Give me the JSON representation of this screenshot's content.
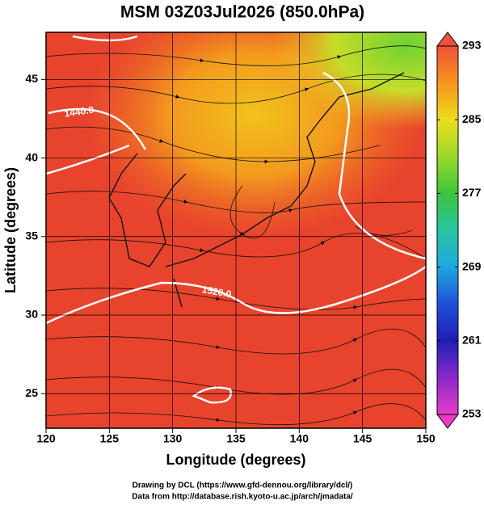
{
  "title": "MSM 03Z03Jul2026 (850.0hPa)",
  "x_axis": {
    "label": "Longitude (degrees)",
    "xlim": [
      120,
      150
    ],
    "ticks": [
      120,
      125,
      130,
      135,
      140,
      145,
      150
    ]
  },
  "y_axis": {
    "label": "Latitude  (degrees)",
    "ylim": [
      22.8,
      48
    ],
    "ticks": [
      25,
      30,
      35,
      40,
      45
    ]
  },
  "colorbar": {
    "lim": [
      253,
      293
    ],
    "ticks": [
      293,
      285,
      277,
      269,
      261,
      253
    ]
  },
  "contour_labels": [
    "1440.0",
    "1520.0"
  ],
  "credits": [
    "Drawing by DCL (https://www.gfd-dennou.org/library/dcl/)",
    "Data from http://database.rish.kyoto-u.ac.jp/arch/jmadata/"
  ]
}
